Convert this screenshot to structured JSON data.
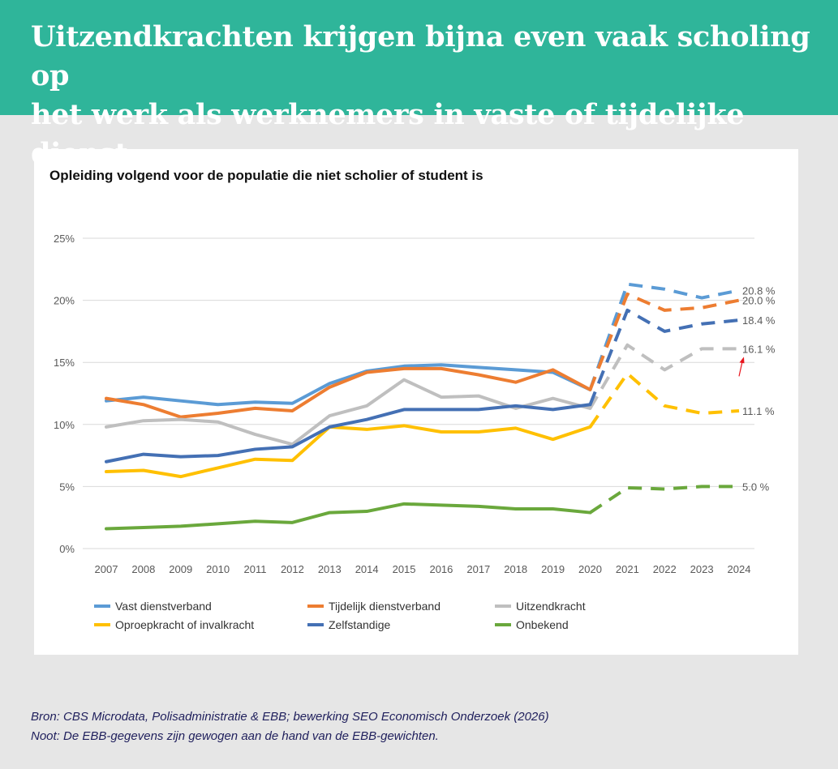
{
  "header": {
    "title_line1": "Uitzendkrachten krijgen bijna even vaak scholing op",
    "title_line2": "het werk als werknemers in vaste of tijdelijke dienst"
  },
  "footer": {
    "source": "Bron: CBS Microdata, Polisadministratie & EBB; bewerking SEO Economisch Onderzoek (2026)",
    "note": "Noot: De EBB-gegevens zijn gewogen aan de hand van de EBB-gewichten."
  },
  "chart_data": {
    "type": "line",
    "title": "Opleiding volgend voor de  populatie die niet scholier of student is",
    "x": [
      "2007",
      "2008",
      "2009",
      "2010",
      "2011",
      "2012",
      "2013",
      "2014",
      "2015",
      "2016",
      "2017",
      "2018",
      "2019",
      "2020",
      "2021",
      "2022",
      "2023",
      "2024"
    ],
    "ylim": [
      0,
      25
    ],
    "yticks": [
      0,
      5,
      10,
      15,
      20,
      25
    ],
    "ytick_labels": [
      "0%",
      "5%",
      "10%",
      "15%",
      "20%",
      "25%"
    ],
    "grid": true,
    "legend_position": "bottom",
    "solid_until_index": 13,
    "series": [
      {
        "name": "Vast dienstverband",
        "color": "#5b9bd5",
        "values": [
          11.9,
          12.2,
          11.9,
          11.6,
          11.8,
          11.7,
          13.3,
          14.3,
          14.7,
          14.8,
          14.6,
          14.4,
          14.2,
          12.8,
          21.3,
          20.9,
          20.2,
          20.8
        ],
        "end_label": "20.8 %"
      },
      {
        "name": "Tijdelijk dienstverband",
        "color": "#ed7d31",
        "values": [
          12.1,
          11.6,
          10.6,
          10.9,
          11.3,
          11.1,
          13.0,
          14.2,
          14.5,
          14.5,
          14.0,
          13.4,
          14.4,
          12.8,
          20.5,
          19.2,
          19.4,
          20.0
        ],
        "end_label": "20.0 %"
      },
      {
        "name": "Uitzendkracht",
        "color": "#bfbfbf",
        "values": [
          9.8,
          10.3,
          10.4,
          10.2,
          9.2,
          8.4,
          10.7,
          11.5,
          13.6,
          12.2,
          12.3,
          11.3,
          12.1,
          11.3,
          16.4,
          14.4,
          16.1,
          16.1
        ],
        "end_label": "16.1 %"
      },
      {
        "name": "Oproepkracht of invalkracht",
        "color": "#ffc000",
        "values": [
          6.2,
          6.3,
          5.8,
          6.5,
          7.2,
          7.1,
          9.8,
          9.6,
          9.9,
          9.4,
          9.4,
          9.7,
          8.8,
          9.8,
          14.1,
          11.5,
          10.9,
          11.1
        ],
        "end_label": "11.1 %"
      },
      {
        "name": "Zelfstandige",
        "color": "#4470b4",
        "values": [
          7.0,
          7.6,
          7.4,
          7.5,
          8.0,
          8.2,
          9.8,
          10.4,
          11.2,
          11.2,
          11.2,
          11.5,
          11.2,
          11.6,
          19.2,
          17.5,
          18.1,
          18.4
        ],
        "end_label": "18.4 %"
      },
      {
        "name": "Onbekend",
        "color": "#6aa83c",
        "values": [
          1.6,
          1.7,
          1.8,
          2.0,
          2.2,
          2.1,
          2.9,
          3.0,
          3.6,
          3.5,
          3.4,
          3.2,
          3.2,
          2.9,
          4.9,
          4.8,
          5.0,
          5.0
        ],
        "end_label": "5.0 %"
      }
    ],
    "annotation": {
      "type": "arrow",
      "color": "#e8141c",
      "target": "16.1 %"
    }
  }
}
